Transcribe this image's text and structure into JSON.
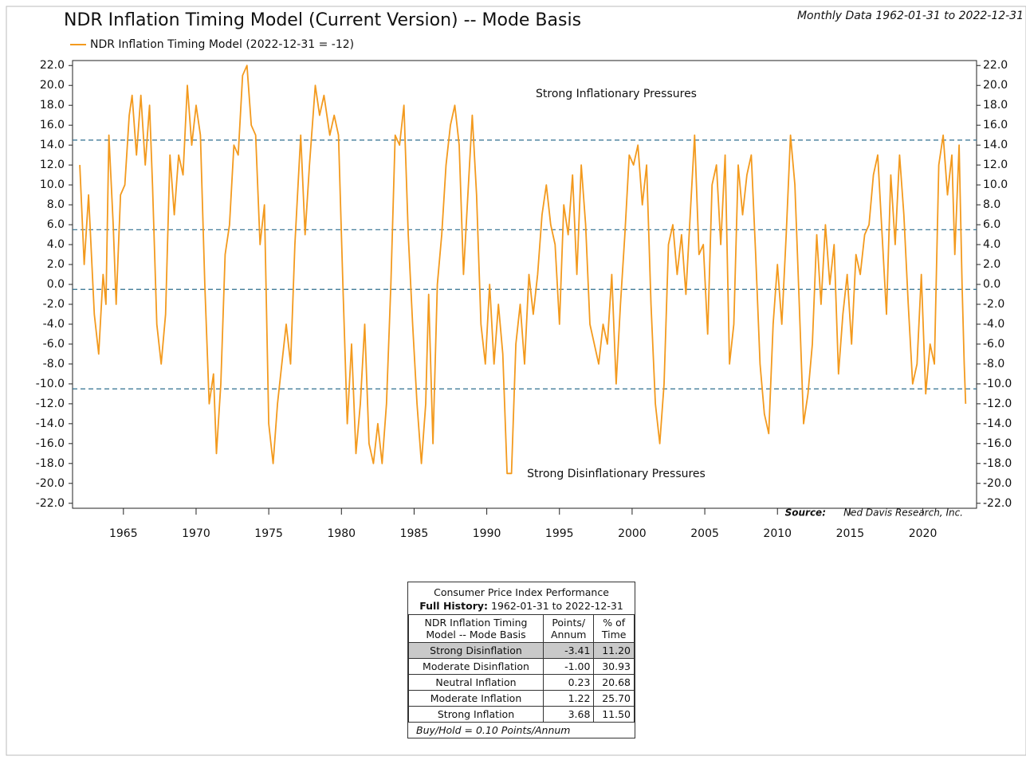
{
  "chart_data": {
    "type": "line",
    "title": "NDR Inflation Timing Model (Current Version) -- Mode Basis",
    "subtitle": "Monthly Data 1962-01-31 to 2022-12-31",
    "annotations": [
      "Strong Inflationary Pressures",
      "Strong Disinflationary Pressures"
    ],
    "source_label": "Source:",
    "source": "Ned Davis Research, Inc.",
    "legend": "top-left",
    "xlim": [
      1961.5,
      2023.7
    ],
    "xticks": [
      1965,
      1970,
      1975,
      1980,
      1985,
      1990,
      1995,
      2000,
      2005,
      2010,
      2015,
      2020
    ],
    "ylim": [
      -22.5,
      22.5
    ],
    "yticks": [
      {
        "value": 22,
        "label": "22.0"
      },
      {
        "value": 20,
        "label": "20.0"
      },
      {
        "value": 18,
        "label": "18.0"
      },
      {
        "value": 16,
        "label": "16.0"
      },
      {
        "value": 14,
        "label": "14.0"
      },
      {
        "value": 12,
        "label": "12.0"
      },
      {
        "value": 10,
        "label": "10.0"
      },
      {
        "value": 8,
        "label": "8.0"
      },
      {
        "value": 6,
        "label": "6.0"
      },
      {
        "value": 4,
        "label": "4.0"
      },
      {
        "value": 2,
        "label": "2.0"
      },
      {
        "value": 0,
        "label": "0.0"
      },
      {
        "value": -2,
        "label": "-2.0"
      },
      {
        "value": -4,
        "label": "-4.0"
      },
      {
        "value": -6,
        "label": "-6.0"
      },
      {
        "value": -8,
        "label": "-8.0"
      },
      {
        "value": -10,
        "label": "-10.0"
      },
      {
        "value": -12,
        "label": "-12.0"
      },
      {
        "value": -14,
        "label": "-14.0"
      },
      {
        "value": -16,
        "label": "-16.0"
      },
      {
        "value": -18,
        "label": "-18.0"
      },
      {
        "value": -20,
        "label": "-20.0"
      },
      {
        "value": -22,
        "label": "-22.0"
      }
    ],
    "reference_lines": [
      14.5,
      5.5,
      -0.5,
      -10.5
    ],
    "reference_color": "#2f6f8f",
    "series": [
      {
        "name": "NDR Inflation Timing Model (2022-12-31 = -12)",
        "color": "#f39a1e",
        "x": [
          1962.0,
          1962.3,
          1962.6,
          1963.0,
          1963.3,
          1963.6,
          1963.8,
          1964.0,
          1964.3,
          1964.5,
          1964.8,
          1965.1,
          1965.4,
          1965.6,
          1965.9,
          1966.2,
          1966.5,
          1966.8,
          1967.0,
          1967.3,
          1967.6,
          1967.9,
          1968.2,
          1968.5,
          1968.8,
          1969.1,
          1969.4,
          1969.7,
          1970.0,
          1970.3,
          1970.6,
          1970.9,
          1971.2,
          1971.4,
          1971.7,
          1972.0,
          1972.3,
          1972.6,
          1972.9,
          1973.2,
          1973.5,
          1973.8,
          1974.1,
          1974.4,
          1974.7,
          1975.0,
          1975.3,
          1975.6,
          1975.9,
          1976.2,
          1976.5,
          1976.8,
          1977.2,
          1977.5,
          1977.8,
          1978.2,
          1978.5,
          1978.8,
          1979.2,
          1979.5,
          1979.8,
          1980.1,
          1980.4,
          1980.7,
          1981.0,
          1981.3,
          1981.6,
          1981.9,
          1982.2,
          1982.5,
          1982.8,
          1983.1,
          1983.4,
          1983.7,
          1984.0,
          1984.3,
          1984.6,
          1984.9,
          1985.2,
          1985.5,
          1985.8,
          1986.0,
          1986.3,
          1986.6,
          1986.9,
          1987.2,
          1987.5,
          1987.8,
          1988.1,
          1988.4,
          1988.7,
          1989.0,
          1989.3,
          1989.6,
          1989.9,
          1990.2,
          1990.5,
          1990.8,
          1991.1,
          1991.4,
          1991.7,
          1992.0,
          1992.3,
          1992.6,
          1992.9,
          1993.2,
          1993.5,
          1993.8,
          1994.1,
          1994.4,
          1994.7,
          1995.0,
          1995.3,
          1995.6,
          1995.9,
          1996.2,
          1996.5,
          1996.8,
          1997.1,
          1997.4,
          1997.7,
          1998.0,
          1998.3,
          1998.6,
          1998.9,
          1999.2,
          1999.5,
          1999.8,
          2000.1,
          2000.4,
          2000.7,
          2001.0,
          2001.3,
          2001.6,
          2001.9,
          2002.2,
          2002.5,
          2002.8,
          2003.1,
          2003.4,
          2003.7,
          2004.0,
          2004.3,
          2004.6,
          2004.9,
          2005.2,
          2005.5,
          2005.8,
          2006.1,
          2006.4,
          2006.7,
          2007.0,
          2007.3,
          2007.6,
          2007.9,
          2008.2,
          2008.5,
          2008.8,
          2009.1,
          2009.4,
          2009.7,
          2010.0,
          2010.3,
          2010.6,
          2010.9,
          2011.2,
          2011.5,
          2011.8,
          2012.1,
          2012.4,
          2012.7,
          2013.0,
          2013.3,
          2013.6,
          2013.9,
          2014.2,
          2014.5,
          2014.8,
          2015.1,
          2015.4,
          2015.7,
          2016.0,
          2016.3,
          2016.6,
          2016.9,
          2017.2,
          2017.5,
          2017.8,
          2018.1,
          2018.4,
          2018.7,
          2019.0,
          2019.3,
          2019.6,
          2019.9,
          2020.2,
          2020.5,
          2020.8,
          2021.1,
          2021.4,
          2021.7,
          2022.0,
          2022.2,
          2022.5,
          2022.7,
          2022.85,
          2022.95
        ],
        "values": [
          12,
          2,
          9,
          -3,
          -7,
          1,
          -2,
          15,
          6,
          -2,
          9,
          10,
          17,
          19,
          13,
          19,
          12,
          18,
          10,
          -4,
          -8,
          -3,
          13,
          7,
          13,
          11,
          20,
          14,
          18,
          15,
          0,
          -12,
          -9,
          -17,
          -10,
          3,
          6,
          14,
          13,
          21,
          22,
          16,
          15,
          4,
          8,
          -14,
          -18,
          -12,
          -8,
          -4,
          -8,
          4,
          15,
          5,
          12,
          20,
          17,
          19,
          15,
          17,
          15,
          0,
          -14,
          -6,
          -17,
          -12,
          -4,
          -16,
          -18,
          -14,
          -18,
          -12,
          0,
          15,
          14,
          18,
          5,
          -4,
          -12,
          -18,
          -12,
          -1,
          -16,
          0,
          5,
          12,
          16,
          18,
          14,
          1,
          9,
          17,
          9,
          -4,
          -8,
          0,
          -8,
          -2,
          -7,
          -19,
          -19,
          -6,
          -2,
          -8,
          1,
          -3,
          1,
          7,
          10,
          6,
          4,
          -4,
          8,
          5,
          11,
          1,
          12,
          6,
          -4,
          -6,
          -8,
          -4,
          -6,
          1,
          -10,
          -2,
          5,
          13,
          12,
          14,
          8,
          12,
          -2,
          -12,
          -16,
          -10,
          4,
          6,
          1,
          5,
          -1,
          7,
          15,
          3,
          4,
          -5,
          10,
          12,
          4,
          13,
          -8,
          -4,
          12,
          7,
          11,
          13,
          3,
          -8,
          -13,
          -15,
          -4,
          2,
          -4,
          5,
          15,
          10,
          -2,
          -14,
          -11,
          -6,
          5,
          -2,
          6,
          0,
          4,
          -9,
          -3,
          1,
          -6,
          3,
          1,
          5,
          6,
          11,
          13,
          5,
          -3,
          11,
          4,
          13,
          7,
          -2,
          -10,
          -8,
          1,
          -11,
          -6,
          -8,
          12,
          15,
          9,
          13,
          3,
          14,
          0,
          -8,
          -12
        ]
      }
    ]
  },
  "table": {
    "title": "Consumer Price Index Performance",
    "history_label": "Full History:",
    "history_range": "1962-01-31 to 2022-12-31",
    "headers": [
      "NDR Inflation Timing Model -- Mode Basis",
      "Points/ Annum",
      "% of Time"
    ],
    "rows": [
      [
        "Strong Disinflation",
        "-3.41",
        "11.20"
      ],
      [
        "Moderate Disinflation",
        "-1.00",
        "30.93"
      ],
      [
        "Neutral Inflation",
        "0.23",
        "20.68"
      ],
      [
        "Moderate Inflation",
        "1.22",
        "25.70"
      ],
      [
        "Strong Inflation",
        "3.68",
        "11.50"
      ]
    ],
    "footer": "Buy/Hold = 0.10 Points/Annum"
  }
}
